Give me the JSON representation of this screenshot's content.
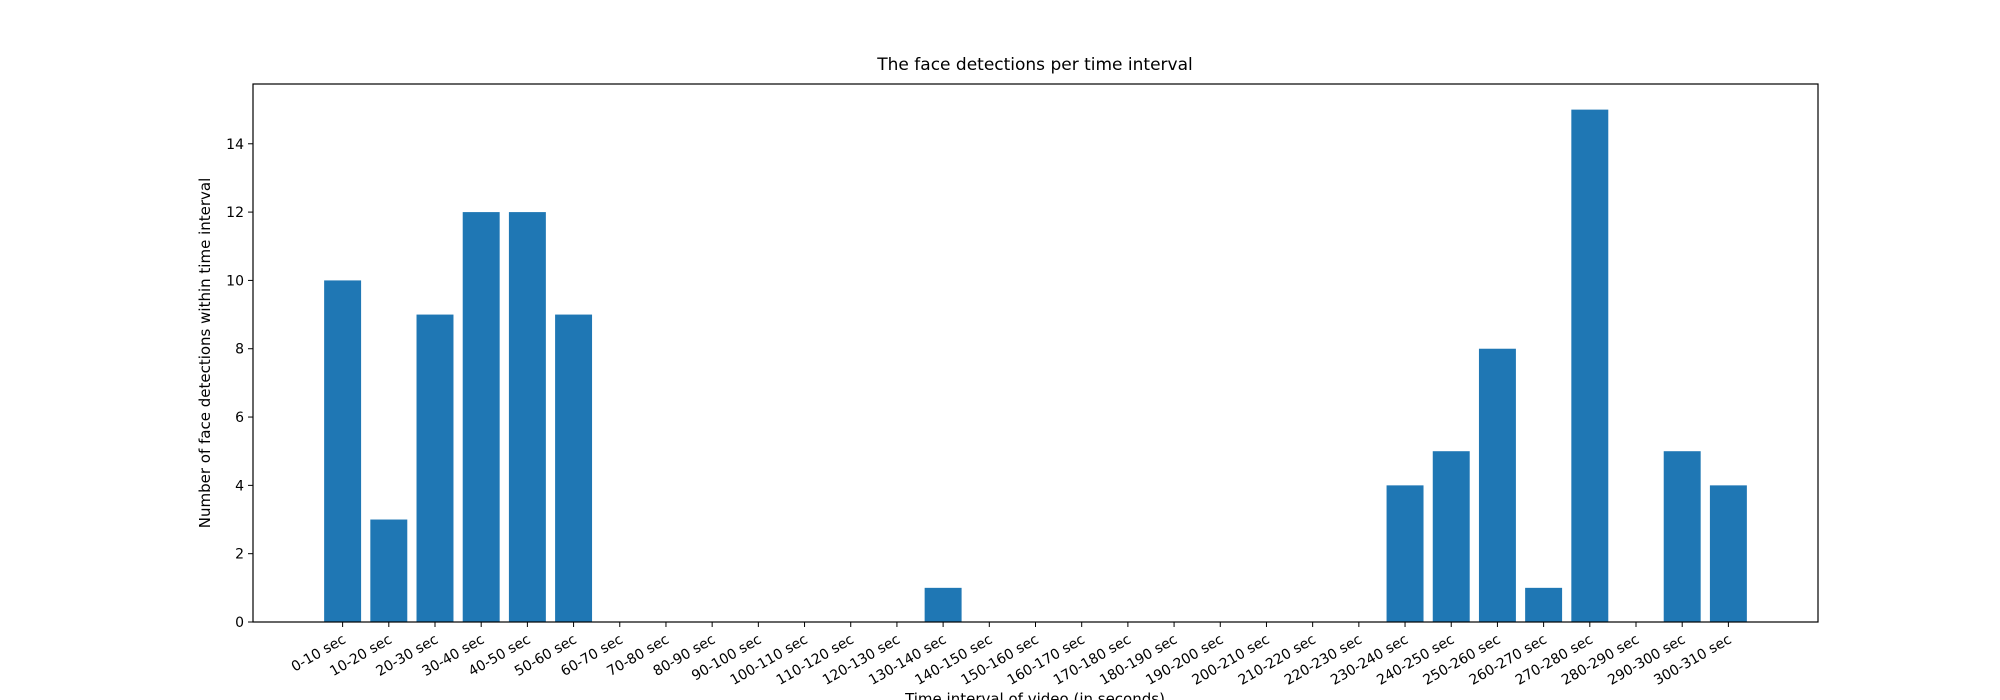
{
  "chart_data": {
    "type": "bar",
    "title": "The face detections per time interval",
    "x_label": "Time interval of video (in seconds)",
    "y_label": "Number of face detections within time interval",
    "categories": [
      "0-10 sec",
      "10-20 sec",
      "20-30 sec",
      "30-40 sec",
      "40-50 sec",
      "50-60 sec",
      "60-70 sec",
      "70-80 sec",
      "80-90 sec",
      "90-100 sec",
      "100-110 sec",
      "110-120 sec",
      "120-130 sec",
      "130-140 sec",
      "140-150 sec",
      "150-160 sec",
      "160-170 sec",
      "170-180 sec",
      "180-190 sec",
      "190-200 sec",
      "200-210 sec",
      "210-220 sec",
      "220-230 sec",
      "230-240 sec",
      "240-250 sec",
      "250-260 sec",
      "260-270 sec",
      "270-280 sec",
      "280-290 sec",
      "290-300 sec",
      "300-310 sec"
    ],
    "values": [
      10,
      3,
      9,
      12,
      12,
      9,
      0,
      0,
      0,
      0,
      0,
      0,
      0,
      1,
      0,
      0,
      0,
      0,
      0,
      0,
      0,
      0,
      0,
      4,
      5,
      8,
      1,
      15,
      0,
      5,
      4
    ],
    "color": "#1f77b4",
    "ylim": [
      0,
      15.75
    ],
    "yticks": [
      0,
      2,
      4,
      6,
      8,
      10,
      12,
      14
    ],
    "grid": false
  }
}
